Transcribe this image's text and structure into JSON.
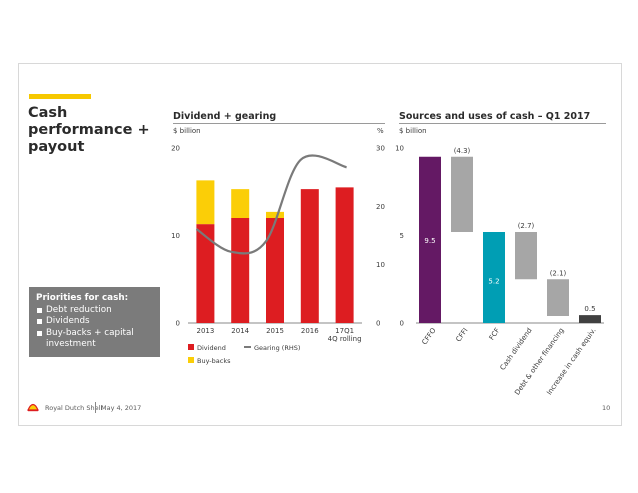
{
  "slide": {
    "title": "Cash performance + payout",
    "priorities_title": "Priorities for cash:",
    "priorities": [
      "Debt reduction",
      "Dividends",
      "Buy-backs + capital investment"
    ],
    "footer_company": "Royal Dutch Shell",
    "footer_date": "May 4, 2017",
    "page_number": "10",
    "colors": {
      "accent": "#f6c800",
      "dividend": "#dd1d21",
      "buybacks": "#fbce07",
      "gearing": "#7a7a7a",
      "cfo": "#641964",
      "cffi": "#a6a6a6",
      "fcf": "#009eb4",
      "equity": "#404040"
    }
  },
  "chart_data": [
    {
      "type": "bar",
      "title": "Dividend + gearing",
      "ylabel": "$ billion",
      "y2label": "%",
      "categories": [
        "2013",
        "2014",
        "2015",
        "2016",
        "17Q1 4Q rolling"
      ],
      "ylim": [
        0,
        20
      ],
      "y2lim": [
        0,
        30
      ],
      "yticks": [
        0,
        10,
        20
      ],
      "y2ticks": [
        0,
        10,
        20,
        30
      ],
      "series": [
        {
          "name": "Dividend",
          "type": "bar",
          "values": [
            11.3,
            12.0,
            12.0,
            15.3,
            15.5
          ]
        },
        {
          "name": "Buy-backs",
          "type": "bar",
          "values": [
            5.0,
            3.3,
            0.7,
            0,
            0
          ]
        },
        {
          "name": "Gearing (RHS)",
          "type": "line",
          "axis": "right",
          "values": [
            16.1,
            12.2,
            14.0,
            28.0,
            26.7
          ]
        }
      ],
      "legend": "bottom"
    },
    {
      "type": "bar",
      "subtype": "waterfall",
      "title": "Sources and uses of cash – Q1 2017",
      "ylabel": "$ billion",
      "ylim": [
        0,
        10
      ],
      "yticks": [
        0,
        5,
        10
      ],
      "categories": [
        "CFFO",
        "CFFI",
        "FCF",
        "Cash dividend",
        "Debt & other financing",
        "Increase in cash equiv."
      ],
      "bars": [
        {
          "label": "9.5",
          "start": 0,
          "end": 9.5
        },
        {
          "label": "(4.3)",
          "start": 5.2,
          "end": 9.5
        },
        {
          "label": "5.2",
          "start": 0,
          "end": 5.2
        },
        {
          "label": "(2.7)",
          "start": 2.5,
          "end": 5.2
        },
        {
          "label": "(2.1)",
          "start": 0.4,
          "end": 2.5
        },
        {
          "label": "0.5",
          "start": 0,
          "end": 0.45
        }
      ]
    }
  ]
}
